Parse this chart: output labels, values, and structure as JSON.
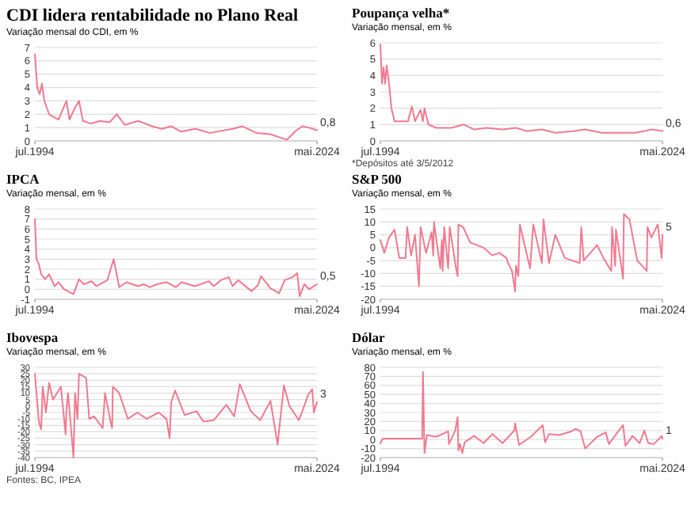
{
  "chart_data": [
    {
      "type": "line",
      "title": "CDI lidera rentabilidade no Plano Real",
      "subtitle": "Variação mensal do CDI, em %",
      "grid": "y",
      "xlim": [
        "1994-07",
        "2024-05"
      ],
      "xticks": [
        {
          "value": "1994-07",
          "label": "jul.1994"
        },
        {
          "value": "2024-05",
          "label": "mai.2024"
        }
      ],
      "ylim": [
        0,
        7
      ],
      "yticks": [
        0,
        1,
        2,
        3,
        4,
        5,
        6,
        7
      ],
      "annotations": [
        {
          "text": "0,8",
          "x": "2024-05",
          "y": 0.8
        }
      ],
      "series": [
        {
          "color": "#f07a90",
          "x": [
            "1994-07",
            "1994-10",
            "1995-01",
            "1995-04",
            "1995-07",
            "1996-01",
            "1997-01",
            "1997-11",
            "1998-03",
            "1998-10",
            "1999-03",
            "1999-08",
            "2000-06",
            "2001-06",
            "2002-06",
            "2003-03",
            "2004-01",
            "2005-06",
            "2006-12",
            "2007-12",
            "2008-12",
            "2009-12",
            "2011-07",
            "2013-01",
            "2015-06",
            "2016-06",
            "2017-12",
            "2019-06",
            "2020-09",
            "2021-03",
            "2022-03",
            "2022-11",
            "2023-06",
            "2023-12",
            "2024-05"
          ],
          "values": [
            6.5,
            4,
            3.5,
            4.3,
            3,
            2,
            1.6,
            3,
            1.6,
            2.5,
            3,
            1.5,
            1.3,
            1.5,
            1.4,
            2,
            1.2,
            1.5,
            1.1,
            0.9,
            1.1,
            0.7,
            0.9,
            0.6,
            0.9,
            1.1,
            0.6,
            0.5,
            0.2,
            0.1,
            0.8,
            1.1,
            1,
            0.9,
            0.8
          ]
        }
      ]
    },
    {
      "type": "line",
      "title": "Poupança velha*",
      "subtitle": "Variação mensal, em %",
      "grid": "y",
      "xlim": [
        "1994-07",
        "2024-05"
      ],
      "xticks": [
        {
          "value": "1994-07",
          "label": "jul.1994"
        },
        {
          "value": "2024-05",
          "label": "mai.2024"
        }
      ],
      "ylim": [
        0,
        6
      ],
      "yticks": [
        0,
        1,
        2,
        3,
        4,
        5,
        6
      ],
      "annotations": [
        {
          "text": "0,6",
          "x": "2024-05",
          "y": 0.6
        },
        "*Depósitos até 3/5/2012"
      ],
      "series": [
        {
          "color": "#f07a90",
          "x": [
            "1994-07",
            "1994-09",
            "1994-11",
            "1995-01",
            "1995-03",
            "1995-06",
            "1995-09",
            "1996-01",
            "1997-06",
            "1997-11",
            "1998-03",
            "1998-10",
            "1999-01",
            "1999-03",
            "1999-08",
            "2000-06",
            "2002-01",
            "2003-05",
            "2004-06",
            "2005-10",
            "2007-06",
            "2008-11",
            "2010-01",
            "2011-08",
            "2013-01",
            "2015-01",
            "2016-03",
            "2017-12",
            "2019-06",
            "2021-06",
            "2022-06",
            "2023-03",
            "2024-05"
          ],
          "values": [
            5.9,
            3.5,
            4.5,
            3.5,
            4.6,
            3.5,
            2,
            1.2,
            1.2,
            2.1,
            1.2,
            1.9,
            1.2,
            2,
            1,
            0.8,
            0.8,
            1,
            0.7,
            0.8,
            0.7,
            0.8,
            0.6,
            0.7,
            0.5,
            0.6,
            0.7,
            0.5,
            0.5,
            0.5,
            0.6,
            0.7,
            0.6
          ]
        }
      ]
    },
    {
      "type": "line",
      "title": "IPCA",
      "subtitle": "Variação mensal, em %",
      "grid": "y",
      "xlim": [
        "1994-07",
        "2024-05"
      ],
      "xticks": [
        {
          "value": "1994-07",
          "label": "jul.1994"
        },
        {
          "value": "2024-05",
          "label": "mai.2024"
        }
      ],
      "ylim": [
        -1,
        8
      ],
      "yticks": [
        -1,
        0,
        1,
        2,
        3,
        4,
        5,
        6,
        7,
        8
      ],
      "annotations": [
        {
          "text": "0,5",
          "x": "2024-05",
          "y": 0.5
        }
      ],
      "series": [
        {
          "color": "#f07a90",
          "x": [
            "1994-07",
            "1994-09",
            "1994-12",
            "1995-03",
            "1995-08",
            "1996-01",
            "1996-08",
            "1997-01",
            "1997-08",
            "1998-08",
            "1999-03",
            "1999-09",
            "2000-07",
            "2001-01",
            "2002-03",
            "2002-11",
            "2003-01",
            "2003-06",
            "2004-03",
            "2005-06",
            "2006-01",
            "2006-09",
            "2007-06",
            "2008-06",
            "2009-06",
            "2010-01",
            "2011-06",
            "2012-12",
            "2013-06",
            "2014-03",
            "2015-01",
            "2015-06",
            "2016-01",
            "2017-06",
            "2018-02",
            "2018-06",
            "2019-06",
            "2020-05",
            "2020-12",
            "2021-10",
            "2022-04",
            "2022-07",
            "2023-01",
            "2023-07",
            "2024-01",
            "2024-05"
          ],
          "values": [
            7,
            3,
            2.5,
            1.5,
            1,
            1.5,
            0.3,
            0.7,
            0,
            -0.5,
            1,
            0.5,
            0.8,
            0.3,
            0.9,
            3,
            2.2,
            0.2,
            0.7,
            0.3,
            0.5,
            0.2,
            0.5,
            0.7,
            0.2,
            0.7,
            0.3,
            0.8,
            0.3,
            0.9,
            1.2,
            0.3,
            0.9,
            -0.2,
            0.4,
            1.3,
            0.1,
            -0.4,
            0.9,
            1.2,
            1.6,
            -0.7,
            0.5,
            0,
            0.3,
            0.5
          ]
        }
      ]
    },
    {
      "type": "line",
      "title": "S&P 500",
      "subtitle": "Variação mensal, em %",
      "grid": "y",
      "xlim": [
        "1994-07",
        "2024-05"
      ],
      "xticks": [
        {
          "value": "1994-07",
          "label": "jul.1994"
        },
        {
          "value": "2024-05",
          "label": "mai.2024"
        }
      ],
      "ylim": [
        -20,
        15
      ],
      "yticks": [
        -20,
        -15,
        -10,
        -5,
        0,
        5,
        10,
        15
      ],
      "annotations": [
        {
          "text": "5",
          "x": "2024-05",
          "y": 5
        }
      ],
      "series": [
        {
          "color": "#f07a90",
          "x": [
            "1994-07",
            "1994-12",
            "1995-06",
            "1996-01",
            "1996-07",
            "1997-03",
            "1997-05",
            "1997-10",
            "1998-03",
            "1998-08",
            "1998-10",
            "1999-05",
            "1999-12",
            "2000-02",
            "2000-03",
            "2000-11",
            "2001-01",
            "2001-02",
            "2001-04",
            "2001-09",
            "2001-11",
            "2002-07",
            "2002-09",
            "2002-10",
            "2003-04",
            "2004-01",
            "2005-06",
            "2006-05",
            "2007-02",
            "2007-11",
            "2008-01",
            "2008-06",
            "2008-10",
            "2008-11",
            "2009-02",
            "2009-04",
            "2010-05",
            "2010-09",
            "2011-08",
            "2011-10",
            "2012-05",
            "2013-01",
            "2014-01",
            "2015-08",
            "2015-10",
            "2016-01",
            "2017-06",
            "2018-02",
            "2018-12",
            "2019-01",
            "2019-05",
            "2019-06",
            "2020-03",
            "2020-04",
            "2020-11",
            "2021-09",
            "2022-06",
            "2022-09",
            "2022-10",
            "2023-03",
            "2023-11",
            "2024-04",
            "2024-05"
          ],
          "values": [
            3,
            -2,
            4,
            7,
            -4,
            -4,
            8,
            -3,
            5,
            -15,
            8,
            -2,
            6,
            -3,
            10,
            -8,
            3,
            -9,
            8,
            -8,
            8,
            -8,
            -11,
            9,
            8,
            2,
            0,
            -3,
            -2,
            -4,
            -6,
            -9,
            -17,
            -7,
            -11,
            9,
            -8,
            9,
            -6,
            11,
            -6,
            5,
            -4,
            -6,
            8,
            -5,
            1,
            -4,
            -9,
            8,
            -7,
            7,
            -12,
            13,
            11,
            -5,
            -8,
            -9,
            8,
            4,
            9,
            -4,
            5
          ]
        }
      ]
    },
    {
      "type": "line",
      "title": "Ibovespa",
      "subtitle": "Variação mensal, em %",
      "grid": "y",
      "xlim": [
        "1994-07",
        "2024-05"
      ],
      "xticks": [
        {
          "value": "1994-07",
          "label": "jul.1994"
        },
        {
          "value": "2024-05",
          "label": "mai.2024"
        }
      ],
      "ylim": [
        -40,
        30
      ],
      "yticks": [
        -40,
        -35,
        -30,
        -25,
        -20,
        -15,
        -10,
        -5,
        0,
        5,
        10,
        15,
        20,
        25,
        30
      ],
      "annotations": [
        {
          "text": "3",
          "x": "2024-05",
          "y": 3
        },
        "Fontes: BC, IPEA"
      ],
      "series": [
        {
          "color": "#f07a90",
          "x": [
            "1994-07",
            "1994-09",
            "1994-12",
            "1995-03",
            "1995-05",
            "1995-09",
            "1996-01",
            "1996-06",
            "1997-04",
            "1997-10",
            "1997-11",
            "1998-01",
            "1998-08",
            "1998-10",
            "1999-01",
            "1999-03",
            "1999-12",
            "2000-04",
            "2000-10",
            "2001-09",
            "2001-12",
            "2002-07",
            "2002-09",
            "2002-10",
            "2003-06",
            "2004-05",
            "2005-05",
            "2006-05",
            "2007-08",
            "2008-06",
            "2008-10",
            "2008-12",
            "2009-05",
            "2010-05",
            "2011-08",
            "2012-05",
            "2013-06",
            "2014-10",
            "2015-08",
            "2016-03",
            "2017-05",
            "2018-05",
            "2019-06",
            "2020-03",
            "2020-11",
            "2021-06",
            "2022-06",
            "2022-11",
            "2023-06",
            "2023-11",
            "2024-01",
            "2024-05"
          ],
          "values": [
            25,
            10,
            -12,
            -18,
            15,
            -5,
            18,
            5,
            15,
            -22,
            -3,
            10,
            -40,
            10,
            -10,
            25,
            22,
            -10,
            -8,
            -17,
            10,
            -12,
            -17,
            15,
            10,
            -10,
            -5,
            -10,
            -5,
            -10,
            -25,
            3,
            12,
            -7,
            -4,
            -12,
            -11,
            1,
            -8,
            17,
            -4,
            -11,
            4,
            -30,
            16,
            0,
            -11,
            -3,
            9,
            13,
            -5,
            3
          ]
        }
      ]
    },
    {
      "type": "line",
      "title": "Dólar",
      "subtitle": "Variação mensal, em %",
      "grid": "y",
      "xlim": [
        "1994-07",
        "2024-05"
      ],
      "xticks": [
        {
          "value": "1994-07",
          "label": "jul.1994"
        },
        {
          "value": "2024-05",
          "label": "mai.2024"
        }
      ],
      "ylim": [
        -20,
        80
      ],
      "yticks": [
        -20,
        -10,
        0,
        10,
        20,
        30,
        40,
        50,
        60,
        70,
        80
      ],
      "annotations": [
        {
          "text": "1",
          "x": "2024-05",
          "y": 1
        }
      ],
      "series": [
        {
          "color": "#f07a90",
          "x": [
            "1994-07",
            "1994-10",
            "1998-12",
            "1999-01",
            "1999-03",
            "1999-06",
            "2000-06",
            "2001-09",
            "2001-10",
            "2002-06",
            "2002-09",
            "2002-10",
            "2002-12",
            "2003-03",
            "2003-06",
            "2004-06",
            "2005-06",
            "2006-05",
            "2007-06",
            "2008-09",
            "2008-10",
            "2009-03",
            "2010-06",
            "2011-09",
            "2011-12",
            "2012-05",
            "2013-06",
            "2014-09",
            "2015-03",
            "2015-09",
            "2016-03",
            "2017-06",
            "2018-05",
            "2018-09",
            "2019-08",
            "2020-03",
            "2020-06",
            "2021-03",
            "2021-12",
            "2022-06",
            "2022-11",
            "2023-06",
            "2024-04",
            "2024-05"
          ],
          "values": [
            -4,
            1,
            1,
            75,
            -15,
            5,
            3,
            9,
            -5,
            10,
            25,
            -12,
            -5,
            -15,
            -3,
            4,
            -4,
            6,
            -4,
            10,
            18,
            -6,
            3,
            16,
            -3,
            6,
            5,
            9,
            12,
            9,
            -10,
            3,
            8,
            -5,
            8,
            16,
            -7,
            4,
            -4,
            10,
            -4,
            -5,
            4,
            1
          ]
        }
      ]
    }
  ]
}
